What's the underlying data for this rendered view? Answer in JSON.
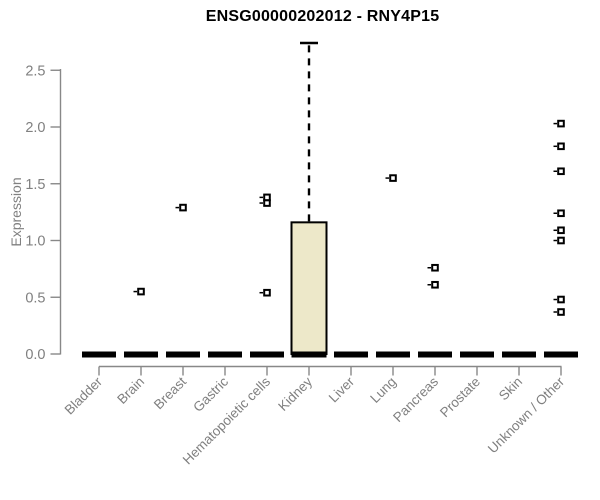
{
  "window": {
    "background": "#FFFFFF"
  },
  "colors": {
    "title": "#000000",
    "axis_line": "#888888",
    "tick_label": "#808080",
    "box_fill": "#EDE8C9",
    "box_border": "#000000",
    "zero_bar": "#000000",
    "outlier": "#000000",
    "outlier_fill": "#FFFFFF"
  },
  "chart_data": {
    "type": "boxplot",
    "title": "ENSG00000202012 - RNY4P15",
    "xlabel": "",
    "ylabel": "Expression",
    "ylim": [
      0,
      2.75
    ],
    "yticks": [
      "0.0",
      "0.5",
      "1.0",
      "1.5",
      "2.0",
      "2.5"
    ],
    "ytick_values": [
      0.0,
      0.5,
      1.0,
      1.5,
      2.0,
      2.5
    ],
    "grid": "off",
    "categories": [
      "Bladder",
      "Brain",
      "Breast",
      "Gastric",
      "Hematopoietic cells",
      "Kidney",
      "Liver",
      "Lung",
      "Pancreas",
      "Prostate",
      "Skin",
      "Unknown / Other"
    ],
    "boxes": [
      {
        "category": "Bladder",
        "median": 0,
        "q1": 0,
        "q3": 0,
        "whisker_low": 0,
        "whisker_high": 0,
        "outliers": []
      },
      {
        "category": "Brain",
        "median": 0,
        "q1": 0,
        "q3": 0,
        "whisker_low": 0,
        "whisker_high": 0,
        "outliers": [
          0.55
        ]
      },
      {
        "category": "Breast",
        "median": 0,
        "q1": 0,
        "q3": 0,
        "whisker_low": 0,
        "whisker_high": 0,
        "outliers": [
          1.29
        ]
      },
      {
        "category": "Gastric",
        "median": 0,
        "q1": 0,
        "q3": 0,
        "whisker_low": 0,
        "whisker_high": 0,
        "outliers": []
      },
      {
        "category": "Hematopoietic cells",
        "median": 0,
        "q1": 0,
        "q3": 0,
        "whisker_low": 0,
        "whisker_high": 0,
        "outliers": [
          0.54,
          1.33,
          1.38
        ]
      },
      {
        "category": "Kidney",
        "median": 0,
        "q1": 0,
        "q3": 1.16,
        "whisker_low": 0,
        "whisker_high": 2.74,
        "outliers": []
      },
      {
        "category": "Liver",
        "median": 0,
        "q1": 0,
        "q3": 0,
        "whisker_low": 0,
        "whisker_high": 0,
        "outliers": []
      },
      {
        "category": "Lung",
        "median": 0,
        "q1": 0,
        "q3": 0,
        "whisker_low": 0,
        "whisker_high": 0,
        "outliers": [
          1.55
        ]
      },
      {
        "category": "Pancreas",
        "median": 0,
        "q1": 0,
        "q3": 0,
        "whisker_low": 0,
        "whisker_high": 0,
        "outliers": [
          0.61,
          0.76
        ]
      },
      {
        "category": "Prostate",
        "median": 0,
        "q1": 0,
        "q3": 0,
        "whisker_low": 0,
        "whisker_high": 0,
        "outliers": []
      },
      {
        "category": "Skin",
        "median": 0,
        "q1": 0,
        "q3": 0,
        "whisker_low": 0,
        "whisker_high": 0,
        "outliers": []
      },
      {
        "category": "Unknown / Other",
        "median": 0,
        "q1": 0,
        "q3": 0,
        "whisker_low": 0,
        "whisker_high": 0,
        "outliers": [
          0.37,
          0.48,
          1.0,
          1.09,
          1.24,
          1.61,
          1.83,
          2.03
        ]
      }
    ]
  }
}
